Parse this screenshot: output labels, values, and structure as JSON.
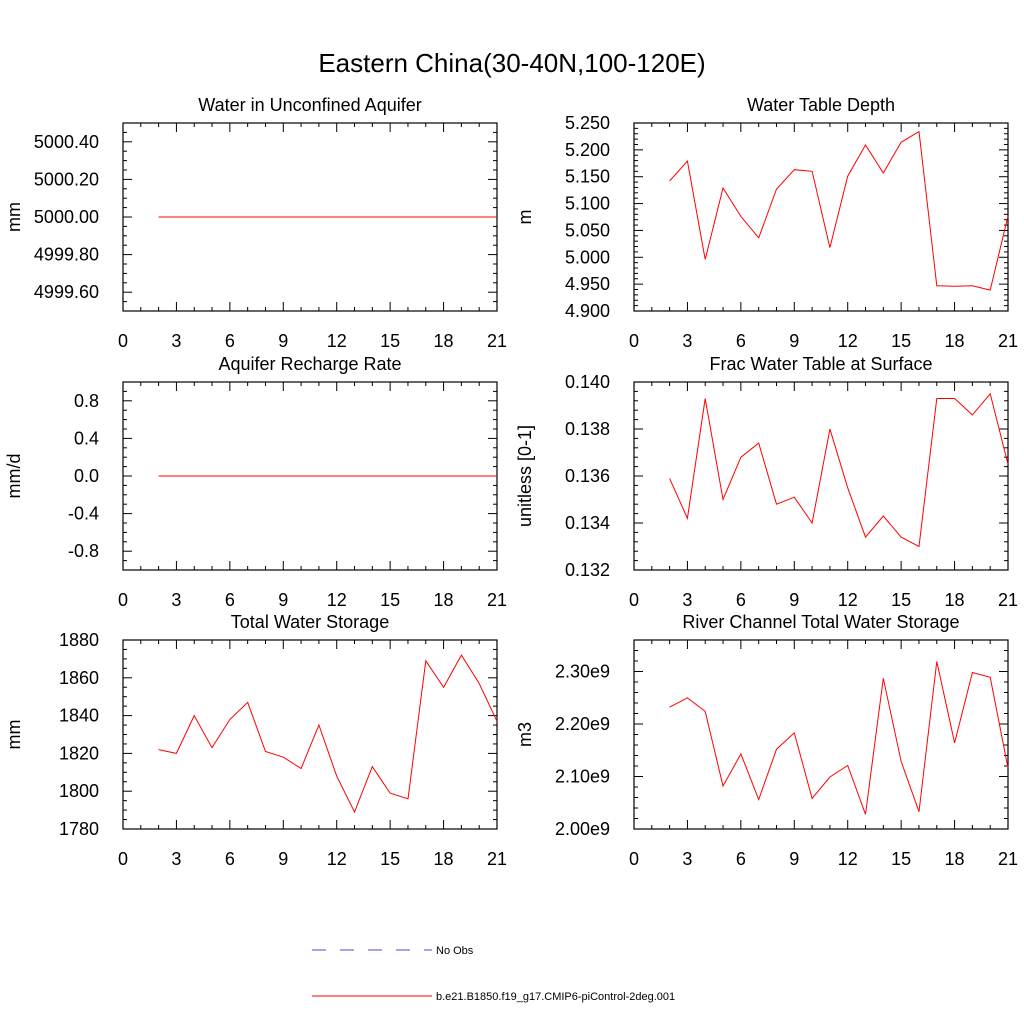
{
  "title": "Eastern China(30-40N,100-120E)",
  "colors": {
    "model": "#ff0000",
    "obs": "#4a4acc",
    "axis": "#000000"
  },
  "legend": {
    "obs_label": "No Obs",
    "model_label": "b.e21.B1850.f19_g17.CMIP6-piControl-2deg.001"
  },
  "chart_data": [
    {
      "type": "line",
      "title": "Water in Unconfined Aquifer",
      "xlabel": "",
      "ylabel": "mm",
      "xlim": [
        0,
        21
      ],
      "xticks": [
        0,
        3,
        6,
        9,
        12,
        15,
        18,
        21
      ],
      "xtick_labels": [
        "0",
        "3",
        "6",
        "9",
        "12",
        "15",
        "18",
        "21"
      ],
      "ylim": [
        4999.5,
        5000.5
      ],
      "yticks": [
        4999.6,
        4999.8,
        5000.0,
        5000.2,
        5000.4
      ],
      "ytick_labels": [
        "4999.60",
        "4999.80",
        "5000.00",
        "5000.20",
        "5000.40"
      ],
      "yminor": 0.05,
      "series": [
        {
          "name": "b.e21.B1850.f19_g17.CMIP6-piControl-2deg.001",
          "x": [
            2,
            3,
            4,
            5,
            6,
            7,
            8,
            9,
            10,
            11,
            12,
            13,
            14,
            15,
            16,
            17,
            18,
            19,
            20,
            21
          ],
          "values": [
            5000,
            5000,
            5000,
            5000,
            5000,
            5000,
            5000,
            5000,
            5000,
            5000,
            5000,
            5000,
            5000,
            5000,
            5000,
            5000,
            5000,
            5000,
            5000,
            5000
          ]
        }
      ]
    },
    {
      "type": "line",
      "title": "Water Table Depth",
      "xlabel": "",
      "ylabel": "m",
      "xlim": [
        0,
        21
      ],
      "xticks": [
        0,
        3,
        6,
        9,
        12,
        15,
        18,
        21
      ],
      "xtick_labels": [
        "0",
        "3",
        "6",
        "9",
        "12",
        "15",
        "18",
        "21"
      ],
      "ylim": [
        4.9,
        5.25
      ],
      "yticks": [
        4.9,
        4.95,
        5.0,
        5.05,
        5.1,
        5.15,
        5.2,
        5.25
      ],
      "ytick_labels": [
        "4.900",
        "4.950",
        "5.000",
        "5.050",
        "5.100",
        "5.150",
        "5.200",
        "5.250"
      ],
      "yminor": 0.01,
      "series": [
        {
          "name": "b.e21.B1850.f19_g17.CMIP6-piControl-2deg.001",
          "x": [
            2,
            3,
            4,
            5,
            6,
            7,
            8,
            9,
            10,
            11,
            12,
            13,
            14,
            15,
            16,
            17,
            18,
            19,
            20,
            21
          ],
          "values": [
            5.142,
            5.179,
            4.996,
            5.129,
            5.076,
            5.036,
            5.127,
            5.163,
            5.16,
            5.018,
            5.151,
            5.209,
            5.157,
            5.214,
            5.234,
            4.947,
            4.946,
            4.947,
            4.939,
            5.077
          ]
        }
      ]
    },
    {
      "type": "line",
      "title": "Aquifer Recharge Rate",
      "xlabel": "",
      "ylabel": "mm/d",
      "xlim": [
        0,
        21
      ],
      "xticks": [
        0,
        3,
        6,
        9,
        12,
        15,
        18,
        21
      ],
      "xtick_labels": [
        "0",
        "3",
        "6",
        "9",
        "12",
        "15",
        "18",
        "21"
      ],
      "ylim": [
        -1.0,
        1.0
      ],
      "yticks": [
        -0.8,
        -0.4,
        0.0,
        0.4,
        0.8
      ],
      "ytick_labels": [
        "-0.8",
        "-0.4",
        "0.0",
        "0.4",
        "0.8"
      ],
      "yminor": 0.1,
      "series": [
        {
          "name": "b.e21.B1850.f19_g17.CMIP6-piControl-2deg.001",
          "x": [
            2,
            3,
            4,
            5,
            6,
            7,
            8,
            9,
            10,
            11,
            12,
            13,
            14,
            15,
            16,
            17,
            18,
            19,
            20,
            21
          ],
          "values": [
            0,
            0,
            0,
            0,
            0,
            0,
            0,
            0,
            0,
            0,
            0,
            0,
            0,
            0,
            0,
            0,
            0,
            0,
            0,
            0
          ]
        }
      ]
    },
    {
      "type": "line",
      "title": "Frac Water Table at Surface",
      "xlabel": "",
      "ylabel": "unitless [0-1]",
      "xlim": [
        0,
        21
      ],
      "xticks": [
        0,
        3,
        6,
        9,
        12,
        15,
        18,
        21
      ],
      "xtick_labels": [
        "0",
        "3",
        "6",
        "9",
        "12",
        "15",
        "18",
        "21"
      ],
      "ylim": [
        0.132,
        0.14
      ],
      "yticks": [
        0.132,
        0.134,
        0.136,
        0.138,
        0.14
      ],
      "ytick_labels": [
        "0.132",
        "0.134",
        "0.136",
        "0.138",
        "0.140"
      ],
      "yminor": 0.0004,
      "series": [
        {
          "name": "b.e21.B1850.f19_g17.CMIP6-piControl-2deg.001",
          "x": [
            2,
            3,
            4,
            5,
            6,
            7,
            8,
            9,
            10,
            11,
            12,
            13,
            14,
            15,
            16,
            17,
            18,
            19,
            20,
            21
          ],
          "values": [
            0.1359,
            0.1342,
            0.1393,
            0.135,
            0.1368,
            0.1374,
            0.1348,
            0.1351,
            0.134,
            0.138,
            0.1355,
            0.1334,
            0.1343,
            0.1334,
            0.133,
            0.1393,
            0.1393,
            0.1386,
            0.1395,
            0.1365
          ]
        }
      ]
    },
    {
      "type": "line",
      "title": "Total Water Storage",
      "xlabel": "",
      "ylabel": "mm",
      "xlim": [
        0,
        21
      ],
      "xticks": [
        0,
        3,
        6,
        9,
        12,
        15,
        18,
        21
      ],
      "xtick_labels": [
        "0",
        "3",
        "6",
        "9",
        "12",
        "15",
        "18",
        "21"
      ],
      "ylim": [
        1780,
        1880
      ],
      "yticks": [
        1780,
        1800,
        1820,
        1840,
        1860,
        1880
      ],
      "ytick_labels": [
        "1780",
        "1800",
        "1820",
        "1840",
        "1860",
        "1880"
      ],
      "yminor": 5,
      "series": [
        {
          "name": "b.e21.B1850.f19_g17.CMIP6-piControl-2deg.001",
          "x": [
            2,
            3,
            4,
            5,
            6,
            7,
            8,
            9,
            10,
            11,
            12,
            13,
            14,
            15,
            16,
            17,
            18,
            19,
            20,
            21
          ],
          "values": [
            1822,
            1820,
            1840,
            1823,
            1838,
            1847,
            1821,
            1818,
            1812,
            1835,
            1808,
            1789,
            1813,
            1799,
            1796,
            1869,
            1855,
            1872,
            1857,
            1837
          ]
        }
      ]
    },
    {
      "type": "line",
      "title": "River Channel Total Water Storage",
      "xlabel": "",
      "ylabel": "m3",
      "xlim": [
        0,
        21
      ],
      "xticks": [
        0,
        3,
        6,
        9,
        12,
        15,
        18,
        21
      ],
      "xtick_labels": [
        "0",
        "3",
        "6",
        "9",
        "12",
        "15",
        "18",
        "21"
      ],
      "ylim": [
        2000000000.0,
        2360000000.0
      ],
      "yticks": [
        2000000000.0,
        2100000000.0,
        2200000000.0,
        2300000000.0
      ],
      "ytick_labels": [
        "2.00e9",
        "2.10e9",
        "2.20e9",
        "2.30e9"
      ],
      "yminor": 20000000.0,
      "series": [
        {
          "name": "b.e21.B1850.f19_g17.CMIP6-piControl-2deg.001",
          "x": [
            2,
            3,
            4,
            5,
            6,
            7,
            8,
            9,
            10,
            11,
            12,
            13,
            14,
            15,
            16,
            17,
            18,
            19,
            20,
            21
          ],
          "values": [
            2232000000.0,
            2250000000.0,
            2224000000.0,
            2082000000.0,
            2143000000.0,
            2056000000.0,
            2152000000.0,
            2183000000.0,
            2058000000.0,
            2099000000.0,
            2121000000.0,
            2028000000.0,
            2287000000.0,
            2129000000.0,
            2033000000.0,
            2319000000.0,
            2164000000.0,
            2298000000.0,
            2289000000.0,
            2116000000.0
          ]
        }
      ]
    }
  ]
}
